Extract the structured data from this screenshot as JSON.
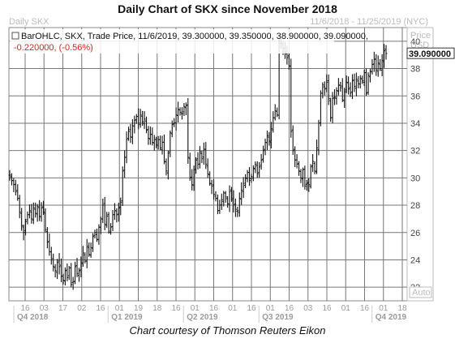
{
  "title": "Daily Chart of SKX since November 2018",
  "caption": "Chart courtesy of Thomson Reuters Eikon",
  "header": {
    "symbol_tab": "Daily SKX",
    "date_range": "11/6/2018 - 11/25/2019 (NYC)",
    "ohlc_line": "BarOHLC, SKX, Trade Price, 11/6/2019, 39.300000, 39.350000, 38.900000, 39.090000,",
    "change_line": "-0.220000, (-0.56%)",
    "price_label": "Price",
    "currency_label": "USD",
    "last_price": "39.090000",
    "auto_label": "Auto"
  },
  "colors": {
    "bars": "#111111",
    "grid": "#777777",
    "price_box_bg": "#ffffff"
  },
  "chart_data": {
    "type": "bar",
    "subtype": "ohlc",
    "ylim": [
      21,
      41
    ],
    "y_ticks": [
      22,
      24,
      26,
      28,
      30,
      32,
      34,
      36,
      38,
      40
    ],
    "x_ticks": [
      "16",
      "03",
      "17",
      "02",
      "16",
      "01",
      "19",
      "18",
      "16",
      "01",
      "16",
      "01",
      "16",
      "01",
      "16",
      "03",
      "16",
      "01",
      "16",
      "01",
      "18"
    ],
    "quarters": [
      "Q4 2018",
      "Q1 2019",
      "Q2 2019",
      "Q3 2019",
      "Q4 2019"
    ],
    "grid": true,
    "close_series": [
      30.2,
      29.8,
      29.5,
      29.0,
      28.5,
      27.5,
      26.5,
      26.0,
      26.8,
      27.3,
      27.6,
      27.0,
      27.8,
      27.4,
      27.9,
      27.2,
      27.8,
      27.5,
      26.2,
      25.3,
      24.6,
      24.0,
      23.5,
      23.2,
      23.8,
      23.5,
      22.8,
      22.5,
      23.2,
      22.7,
      23.4,
      22.2,
      22.4,
      23.5,
      23.0,
      23.2,
      23.8,
      24.5,
      23.9,
      25.0,
      24.4,
      24.9,
      25.7,
      26.0,
      25.5,
      26.4,
      27.0,
      28.0,
      26.6,
      27.2,
      26.1,
      26.4,
      27.3,
      27.6,
      27.3,
      27.8,
      28.2,
      30.5,
      31.5,
      32.8,
      33.4,
      33.0,
      33.8,
      34.2,
      34.5,
      34.0,
      34.6,
      34.1,
      34.3,
      33.5,
      32.9,
      33.2,
      32.6,
      32.8,
      32.4,
      32.8,
      32.2,
      32.6,
      31.2,
      30.5,
      31.8,
      33.3,
      33.9,
      34.0,
      34.6,
      35.0,
      34.8,
      34.7,
      35.2,
      35.3,
      31.5,
      30.0,
      29.5,
      30.6,
      31.3,
      31.0,
      31.9,
      31.4,
      32.1,
      31.0,
      30.3,
      29.6,
      29.4,
      28.8,
      28.5,
      27.6,
      28.0,
      28.4,
      28.9,
      28.6,
      28.1,
      29.0,
      28.4,
      28.0,
      27.7,
      27.6,
      28.5,
      29.1,
      29.6,
      30.0,
      30.4,
      29.8,
      30.1,
      30.7,
      31.0,
      30.3,
      30.8,
      31.3,
      32.0,
      32.6,
      33.1,
      32.7,
      33.6,
      34.4,
      34.9,
      34.6,
      40.0,
      39.8,
      39.5,
      39.2,
      38.8,
      38.2,
      33.4,
      32.0,
      31.3,
      31.0,
      30.5,
      30.0,
      30.6,
      29.4,
      29.6,
      29.5,
      30.8,
      31.2,
      30.5,
      32.2,
      34.0,
      36.2,
      36.8,
      36.5,
      37.0,
      35.8,
      34.4,
      35.8,
      35.9,
      36.4,
      36.8,
      36.6,
      35.7,
      36.3,
      37.0,
      36.5,
      36.2,
      37.1,
      36.7,
      37.2,
      36.9,
      37.3,
      37.1,
      37.7,
      36.2,
      37.5,
      37.8,
      38.3,
      38.7,
      37.9,
      38.4,
      38.0,
      38.6,
      39.3,
      39.1
    ]
  }
}
